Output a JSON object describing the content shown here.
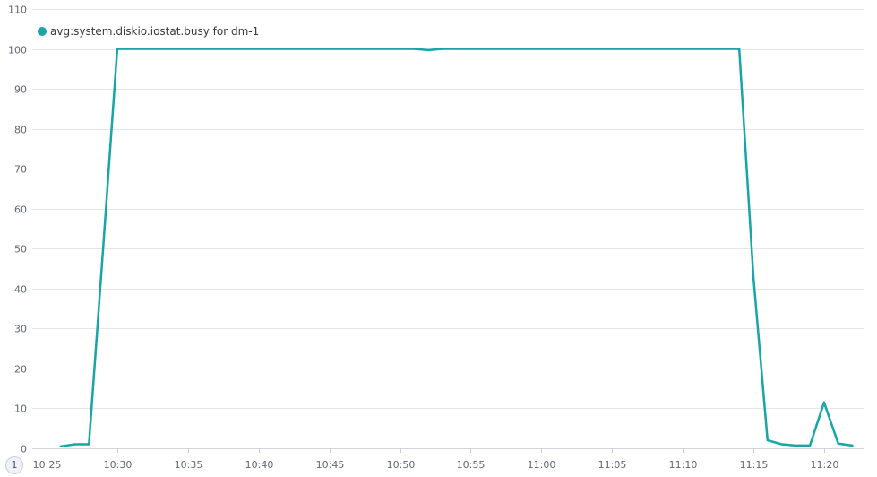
{
  "chart_data": {
    "type": "line",
    "ylim": [
      0,
      110
    ],
    "yticks": [
      0,
      10,
      20,
      30,
      40,
      50,
      60,
      70,
      80,
      90,
      100,
      110
    ],
    "xticks": [
      "10:25",
      "10:30",
      "10:35",
      "10:40",
      "10:45",
      "10:50",
      "10:55",
      "11:00",
      "11:05",
      "11:10",
      "11:15",
      "11:20"
    ],
    "xlim": [
      "10:25",
      "11:22"
    ],
    "grid": true,
    "legend_position": "top-left",
    "series": [
      {
        "name": "avg:system.diskio.iostat.busy for dm-1",
        "color": "#17a5a5",
        "x": [
          "10:26",
          "10:27",
          "10:28",
          "10:29",
          "10:30",
          "10:35",
          "10:40",
          "10:45",
          "10:50",
          "10:51",
          "10:52",
          "10:53",
          "10:55",
          "11:00",
          "11:05",
          "11:10",
          "11:14",
          "11:15",
          "11:16",
          "11:17",
          "11:18",
          "11:19",
          "11:20",
          "11:21",
          "11:22"
        ],
        "values": [
          0.5,
          1,
          1,
          50,
          100,
          100,
          100,
          100,
          100,
          100,
          99.7,
          100,
          100,
          100,
          100,
          100,
          100,
          43,
          2,
          1,
          0.7,
          0.7,
          11.5,
          1.2,
          0.7
        ]
      }
    ]
  },
  "pagination": {
    "current": "1"
  }
}
